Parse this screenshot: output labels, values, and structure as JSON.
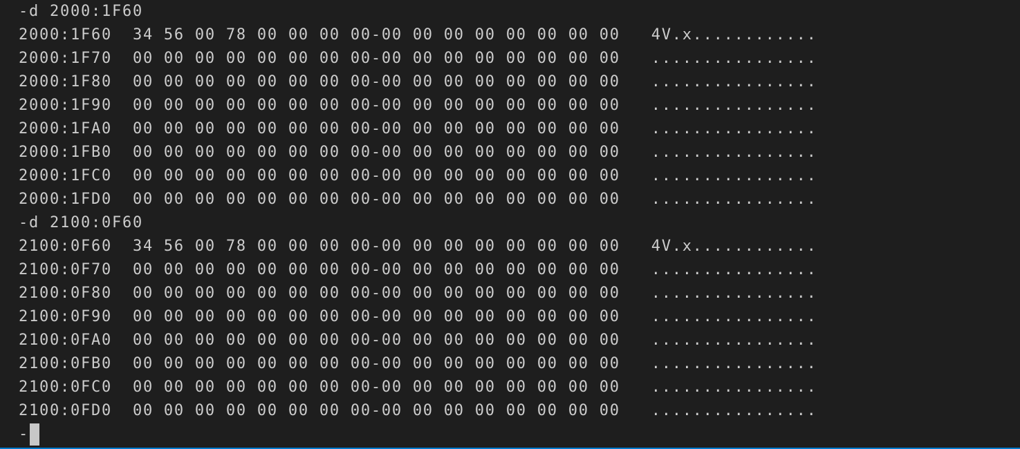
{
  "blocks": [
    {
      "command": "-d 2000:1F60",
      "rows": [
        "2000:1F60  34 56 00 78 00 00 00 00-00 00 00 00 00 00 00 00   4V.x............",
        "2000:1F70  00 00 00 00 00 00 00 00-00 00 00 00 00 00 00 00   ................",
        "2000:1F80  00 00 00 00 00 00 00 00-00 00 00 00 00 00 00 00   ................",
        "2000:1F90  00 00 00 00 00 00 00 00-00 00 00 00 00 00 00 00   ................",
        "2000:1FA0  00 00 00 00 00 00 00 00-00 00 00 00 00 00 00 00   ................",
        "2000:1FB0  00 00 00 00 00 00 00 00-00 00 00 00 00 00 00 00   ................",
        "2000:1FC0  00 00 00 00 00 00 00 00-00 00 00 00 00 00 00 00   ................",
        "2000:1FD0  00 00 00 00 00 00 00 00-00 00 00 00 00 00 00 00   ................"
      ]
    },
    {
      "command": "-d 2100:0F60",
      "rows": [
        "2100:0F60  34 56 00 78 00 00 00 00-00 00 00 00 00 00 00 00   4V.x............",
        "2100:0F70  00 00 00 00 00 00 00 00-00 00 00 00 00 00 00 00   ................",
        "2100:0F80  00 00 00 00 00 00 00 00-00 00 00 00 00 00 00 00   ................",
        "2100:0F90  00 00 00 00 00 00 00 00-00 00 00 00 00 00 00 00   ................",
        "2100:0FA0  00 00 00 00 00 00 00 00-00 00 00 00 00 00 00 00   ................",
        "2100:0FB0  00 00 00 00 00 00 00 00-00 00 00 00 00 00 00 00   ................",
        "2100:0FC0  00 00 00 00 00 00 00 00-00 00 00 00 00 00 00 00   ................",
        "2100:0FD0  00 00 00 00 00 00 00 00-00 00 00 00 00 00 00 00   ................"
      ]
    }
  ],
  "prompt": "-"
}
